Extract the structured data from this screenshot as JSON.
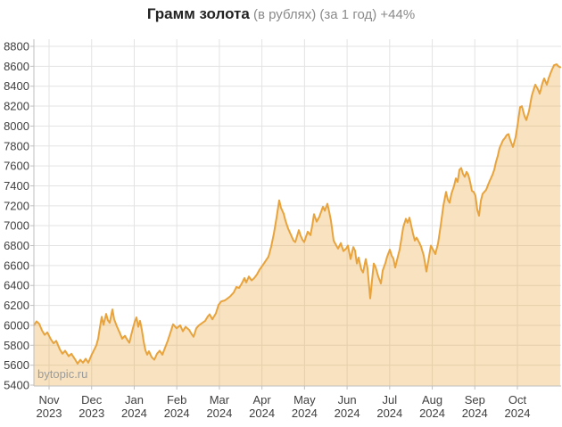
{
  "title": {
    "main": "Грамм золота",
    "sub": " (в рублях) (за 1 год) +44%"
  },
  "watermark": "bytopic.ru",
  "chart_data": {
    "type": "area",
    "title": "Грамм золота (в рублях) (за 1 год) +44%",
    "xlabel": "",
    "ylabel": "",
    "ylim": [
      5400,
      8800
    ],
    "y_tick_step": 200,
    "grid": true,
    "legend": false,
    "y_ticks": [
      8800,
      8600,
      8400,
      8200,
      8000,
      7800,
      7600,
      7400,
      7200,
      7000,
      6800,
      6600,
      6400,
      6200,
      6000,
      5800,
      5600,
      5400
    ],
    "x_labels": [
      {
        "month": "Nov",
        "year": "2023"
      },
      {
        "month": "Dec",
        "year": "2023"
      },
      {
        "month": "Jan",
        "year": "2024"
      },
      {
        "month": "Feb",
        "year": "2024"
      },
      {
        "month": "Mar",
        "year": "2024"
      },
      {
        "month": "Apr",
        "year": "2024"
      },
      {
        "month": "May",
        "year": "2024"
      },
      {
        "month": "Jun",
        "year": "2024"
      },
      {
        "month": "Jul",
        "year": "2024"
      },
      {
        "month": "Aug",
        "year": "2024"
      },
      {
        "month": "Sep",
        "year": "2024"
      },
      {
        "month": "Oct",
        "year": "2024"
      }
    ],
    "colors": {
      "line": "#e8a33c",
      "fill": "rgba(234,167,61,0.33)",
      "grid": "#e3e3e3",
      "axis": "#bfbfbf",
      "tick_text": "#3f3f3f",
      "title_main": "#222222",
      "title_sub": "#8a8a8a",
      "watermark": "#9b9b9b"
    },
    "series": [
      {
        "name": "Грамм золота, руб.",
        "points": [
          [
            38,
            6000
          ],
          [
            41,
            6040
          ],
          [
            44,
            6015
          ],
          [
            47,
            5950
          ],
          [
            50,
            5905
          ],
          [
            53,
            5930
          ],
          [
            57,
            5860
          ],
          [
            60,
            5820
          ],
          [
            63,
            5845
          ],
          [
            67,
            5760
          ],
          [
            70,
            5715
          ],
          [
            73,
            5745
          ],
          [
            77,
            5690
          ],
          [
            80,
            5715
          ],
          [
            84,
            5660
          ],
          [
            87,
            5615
          ],
          [
            90,
            5655
          ],
          [
            93,
            5625
          ],
          [
            96,
            5665
          ],
          [
            99,
            5625
          ],
          [
            102,
            5690
          ],
          [
            105,
            5745
          ],
          [
            108,
            5800
          ],
          [
            110,
            5865
          ],
          [
            112,
            5980
          ],
          [
            114,
            6085
          ],
          [
            116,
            6005
          ],
          [
            119,
            6115
          ],
          [
            121,
            6050
          ],
          [
            123,
            6025
          ],
          [
            126,
            6160
          ],
          [
            128,
            6060
          ],
          [
            131,
            5990
          ],
          [
            134,
            5930
          ],
          [
            137,
            5865
          ],
          [
            140,
            5895
          ],
          [
            143,
            5850
          ],
          [
            145,
            5825
          ],
          [
            147,
            5900
          ],
          [
            149,
            5970
          ],
          [
            151,
            6035
          ],
          [
            153,
            6080
          ],
          [
            155,
            5985
          ],
          [
            157,
            6045
          ],
          [
            159,
            5955
          ],
          [
            161,
            5840
          ],
          [
            163,
            5750
          ],
          [
            165,
            5705
          ],
          [
            167,
            5740
          ],
          [
            170,
            5680
          ],
          [
            173,
            5655
          ],
          [
            176,
            5715
          ],
          [
            179,
            5745
          ],
          [
            182,
            5705
          ],
          [
            185,
            5775
          ],
          [
            188,
            5845
          ],
          [
            191,
            5925
          ],
          [
            194,
            6010
          ],
          [
            198,
            5970
          ],
          [
            202,
            6000
          ],
          [
            205,
            5940
          ],
          [
            208,
            5985
          ],
          [
            212,
            5955
          ],
          [
            215,
            5910
          ],
          [
            217,
            5885
          ],
          [
            220,
            5970
          ],
          [
            223,
            6000
          ],
          [
            227,
            6025
          ],
          [
            230,
            6045
          ],
          [
            233,
            6090
          ],
          [
            235,
            6110
          ],
          [
            238,
            6060
          ],
          [
            242,
            6120
          ],
          [
            245,
            6205
          ],
          [
            248,
            6240
          ],
          [
            252,
            6250
          ],
          [
            255,
            6270
          ],
          [
            258,
            6290
          ],
          [
            262,
            6330
          ],
          [
            265,
            6385
          ],
          [
            268,
            6375
          ],
          [
            271,
            6420
          ],
          [
            274,
            6475
          ],
          [
            276,
            6430
          ],
          [
            279,
            6490
          ],
          [
            282,
            6450
          ],
          [
            285,
            6475
          ],
          [
            288,
            6510
          ],
          [
            291,
            6560
          ],
          [
            295,
            6610
          ],
          [
            298,
            6650
          ],
          [
            301,
            6690
          ],
          [
            304,
            6790
          ],
          [
            307,
            6920
          ],
          [
            310,
            7080
          ],
          [
            313,
            7255
          ],
          [
            315,
            7180
          ],
          [
            318,
            7120
          ],
          [
            320,
            7050
          ],
          [
            323,
            6970
          ],
          [
            326,
            6910
          ],
          [
            329,
            6850
          ],
          [
            331,
            6835
          ],
          [
            333,
            6895
          ],
          [
            335,
            6955
          ],
          [
            337,
            6900
          ],
          [
            339,
            6860
          ],
          [
            341,
            6835
          ],
          [
            343,
            6890
          ],
          [
            345,
            6940
          ],
          [
            348,
            6905
          ],
          [
            350,
            7000
          ],
          [
            352,
            7115
          ],
          [
            355,
            7040
          ],
          [
            358,
            7090
          ],
          [
            362,
            7190
          ],
          [
            364,
            7150
          ],
          [
            367,
            7220
          ],
          [
            369,
            7140
          ],
          [
            371,
            7050
          ],
          [
            374,
            6850
          ],
          [
            377,
            6800
          ],
          [
            379,
            6770
          ],
          [
            382,
            6825
          ],
          [
            385,
            6745
          ],
          [
            388,
            6770
          ],
          [
            390,
            6800
          ],
          [
            393,
            6665
          ],
          [
            396,
            6785
          ],
          [
            398,
            6750
          ],
          [
            400,
            6620
          ],
          [
            402,
            6680
          ],
          [
            405,
            6560
          ],
          [
            407,
            6530
          ],
          [
            410,
            6665
          ],
          [
            412,
            6570
          ],
          [
            415,
            6270
          ],
          [
            417,
            6450
          ],
          [
            419,
            6620
          ],
          [
            421,
            6585
          ],
          [
            424,
            6490
          ],
          [
            427,
            6420
          ],
          [
            429,
            6550
          ],
          [
            432,
            6625
          ],
          [
            434,
            6690
          ],
          [
            437,
            6760
          ],
          [
            439,
            6700
          ],
          [
            441,
            6670
          ],
          [
            443,
            6580
          ],
          [
            446,
            6690
          ],
          [
            448,
            6760
          ],
          [
            450,
            6870
          ],
          [
            452,
            6985
          ],
          [
            455,
            7070
          ],
          [
            457,
            7030
          ],
          [
            459,
            7080
          ],
          [
            461,
            7000
          ],
          [
            463,
            6920
          ],
          [
            465,
            6850
          ],
          [
            467,
            6880
          ],
          [
            470,
            6830
          ],
          [
            472,
            6790
          ],
          [
            475,
            6700
          ],
          [
            478,
            6540
          ],
          [
            480,
            6640
          ],
          [
            483,
            6800
          ],
          [
            486,
            6750
          ],
          [
            488,
            6715
          ],
          [
            491,
            6820
          ],
          [
            494,
            7000
          ],
          [
            497,
            7200
          ],
          [
            500,
            7340
          ],
          [
            502,
            7260
          ],
          [
            504,
            7230
          ],
          [
            506,
            7320
          ],
          [
            509,
            7400
          ],
          [
            511,
            7475
          ],
          [
            513,
            7440
          ],
          [
            515,
            7560
          ],
          [
            517,
            7580
          ],
          [
            519,
            7520
          ],
          [
            521,
            7490
          ],
          [
            523,
            7540
          ],
          [
            525,
            7510
          ],
          [
            527,
            7440
          ],
          [
            529,
            7350
          ],
          [
            531,
            7340
          ],
          [
            533,
            7300
          ],
          [
            535,
            7160
          ],
          [
            537,
            7100
          ],
          [
            539,
            7250
          ],
          [
            541,
            7320
          ],
          [
            543,
            7340
          ],
          [
            545,
            7360
          ],
          [
            548,
            7430
          ],
          [
            550,
            7470
          ],
          [
            552,
            7510
          ],
          [
            554,
            7560
          ],
          [
            556,
            7640
          ],
          [
            558,
            7700
          ],
          [
            560,
            7780
          ],
          [
            562,
            7820
          ],
          [
            564,
            7860
          ],
          [
            566,
            7880
          ],
          [
            568,
            7910
          ],
          [
            570,
            7920
          ],
          [
            572,
            7860
          ],
          [
            575,
            7790
          ],
          [
            578,
            7890
          ],
          [
            580,
            8000
          ],
          [
            583,
            8190
          ],
          [
            585,
            8200
          ],
          [
            588,
            8100
          ],
          [
            590,
            8060
          ],
          [
            593,
            8150
          ],
          [
            596,
            8300
          ],
          [
            598,
            8360
          ],
          [
            600,
            8415
          ],
          [
            603,
            8370
          ],
          [
            605,
            8325
          ],
          [
            608,
            8430
          ],
          [
            610,
            8478
          ],
          [
            613,
            8415
          ],
          [
            615,
            8480
          ],
          [
            618,
            8550
          ],
          [
            621,
            8610
          ],
          [
            624,
            8620
          ],
          [
            626,
            8600
          ],
          [
            628,
            8590
          ]
        ]
      }
    ]
  }
}
